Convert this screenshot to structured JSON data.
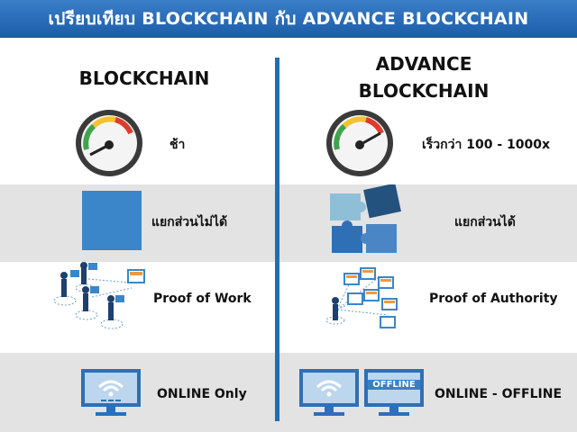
{
  "header": {
    "title": "เปรียบเทียบ BLOCKCHAIN กับ ADVANCE BLOCKCHAIN"
  },
  "left": {
    "title": "BLOCKCHAIN",
    "rows": [
      "ช้า",
      "แยกส่วนไม่ได้",
      "Proof of Work",
      "ONLINE Only"
    ]
  },
  "right": {
    "title_line1": "ADVANCE",
    "title_line2": "BLOCKCHAIN",
    "rows": [
      "เร็วกว่า 100 - 1000x",
      "แยกส่วนได้",
      "Proof of Authority",
      "ONLINE - OFFLINE"
    ],
    "offline_badge": "OFFLINE"
  },
  "colors": {
    "header": "#1c5ca8",
    "accent": "#1f6fb5",
    "band": "#e3e3e3",
    "puzzle": "#2f6fb5"
  }
}
